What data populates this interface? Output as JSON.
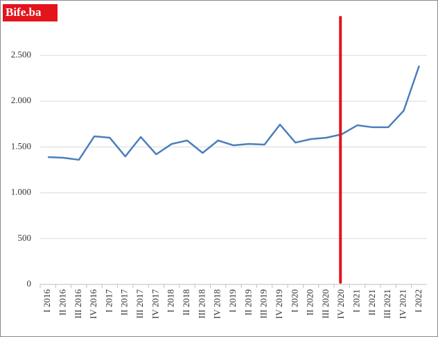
{
  "watermark": "Bife.ba",
  "chart_data": {
    "type": "line",
    "categories": [
      "I 2016",
      "II 2016",
      "III 2016",
      "IV 2016",
      "I 2017",
      "II 2017",
      "III 2017",
      "IV 2017",
      "I 2018",
      "II 2018",
      "III 2018",
      "IV 2018",
      "I 2019",
      "II 2019",
      "III 2019",
      "IV 2019",
      "I 2020",
      "II 2020",
      "III 2020",
      "IV 2020",
      "I 2021",
      "II 2021",
      "III 2021",
      "IV 2021",
      "I 2022"
    ],
    "values": [
      1390,
      1382,
      1360,
      1616,
      1601,
      1397,
      1609,
      1420,
      1533,
      1571,
      1435,
      1571,
      1518,
      1533,
      1526,
      1745,
      1548,
      1586,
      1601,
      1639,
      1737,
      1715,
      1715,
      1896,
      2387
    ],
    "color": "#4a7ebb",
    "ylim": [
      0,
      2500
    ],
    "yticks": [
      0,
      500,
      {
        "value": 1000,
        "label": "1.000"
      },
      {
        "value": 1500,
        "label": "1.500"
      },
      {
        "value": 2000,
        "label": "2.000"
      },
      {
        "value": 2500,
        "label": "2.500"
      }
    ],
    "grid": true,
    "highlight": {
      "at": "IV 2020",
      "color": "#e3141b"
    }
  }
}
